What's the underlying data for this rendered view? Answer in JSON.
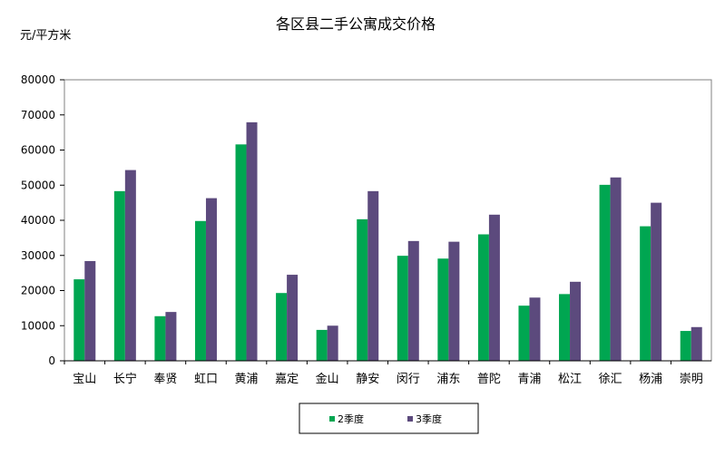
{
  "chart_data": {
    "type": "bar",
    "title": "各区县二手公寓成交价格",
    "ylabel": "元/平方米",
    "xlabel": "",
    "ylim": [
      0,
      80000
    ],
    "yticks": [
      "0",
      "10000",
      "20000",
      "30000",
      "40000",
      "50000",
      "60000",
      "70000",
      "80000"
    ],
    "categories": [
      "宝山",
      "长宁",
      "奉贤",
      "虹口",
      "黄浦",
      "嘉定",
      "金山",
      "静安",
      "闵行",
      "浦东",
      "普陀",
      "青浦",
      "松江",
      "徐汇",
      "杨浦",
      "崇明"
    ],
    "series": [
      {
        "name": "2季度",
        "color": "#00a651",
        "values": [
          23200,
          48300,
          12700,
          39800,
          61600,
          19300,
          8800,
          40300,
          29900,
          29100,
          36000,
          15700,
          19000,
          50100,
          38300,
          8500
        ]
      },
      {
        "name": "3季度",
        "color": "#5c4a7d",
        "values": [
          28400,
          54300,
          13900,
          46300,
          67900,
          24500,
          10000,
          48300,
          34100,
          33900,
          41600,
          18000,
          22500,
          52200,
          45000,
          9600
        ]
      }
    ],
    "grid": false,
    "legend_position": "bottom"
  }
}
